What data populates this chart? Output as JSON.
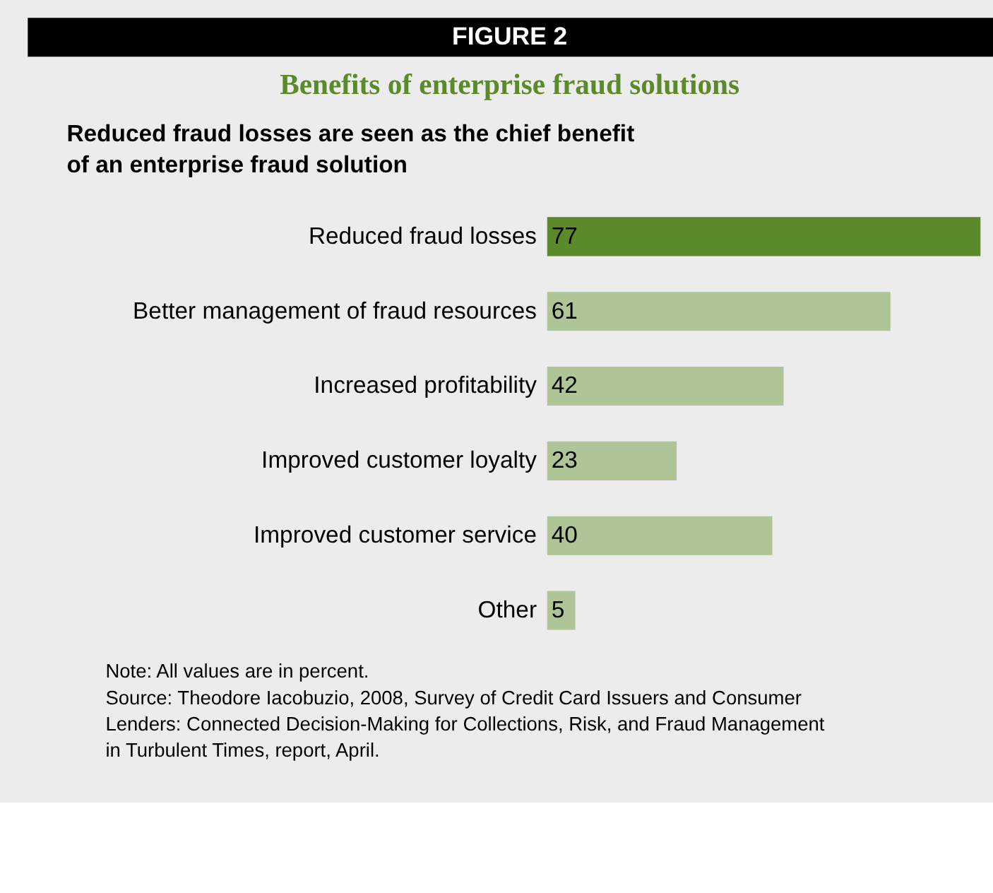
{
  "chart_data": {
    "type": "bar",
    "orientation": "horizontal",
    "data_labels": true,
    "title": "Benefits of enterprise fraud solutions",
    "subtitle": "Reduced fraud losses are seen as the chief benefit of an enterprise fraud solution",
    "categories": [
      "Reduced fraud losses",
      "Better management of fraud resources",
      "Increased profitability",
      "Improved customer loyalty",
      "Improved customer service",
      "Other"
    ],
    "values": [
      77,
      61,
      42,
      23,
      40,
      5
    ],
    "colors": [
      "#5b8a2b",
      "#afc497",
      "#afc497",
      "#afc497",
      "#afc497",
      "#afc497"
    ],
    "annotations": [
      "FIGURE 2",
      "Note: All values are in percent.",
      "Source: Theodore Iacobuzio, 2008, Survey of Credit Card Issuers and Consumer Lenders: Connected Decision-Making for Collections, Risk, and Fraud Management in Turbulent Times, report, April."
    ]
  }
}
